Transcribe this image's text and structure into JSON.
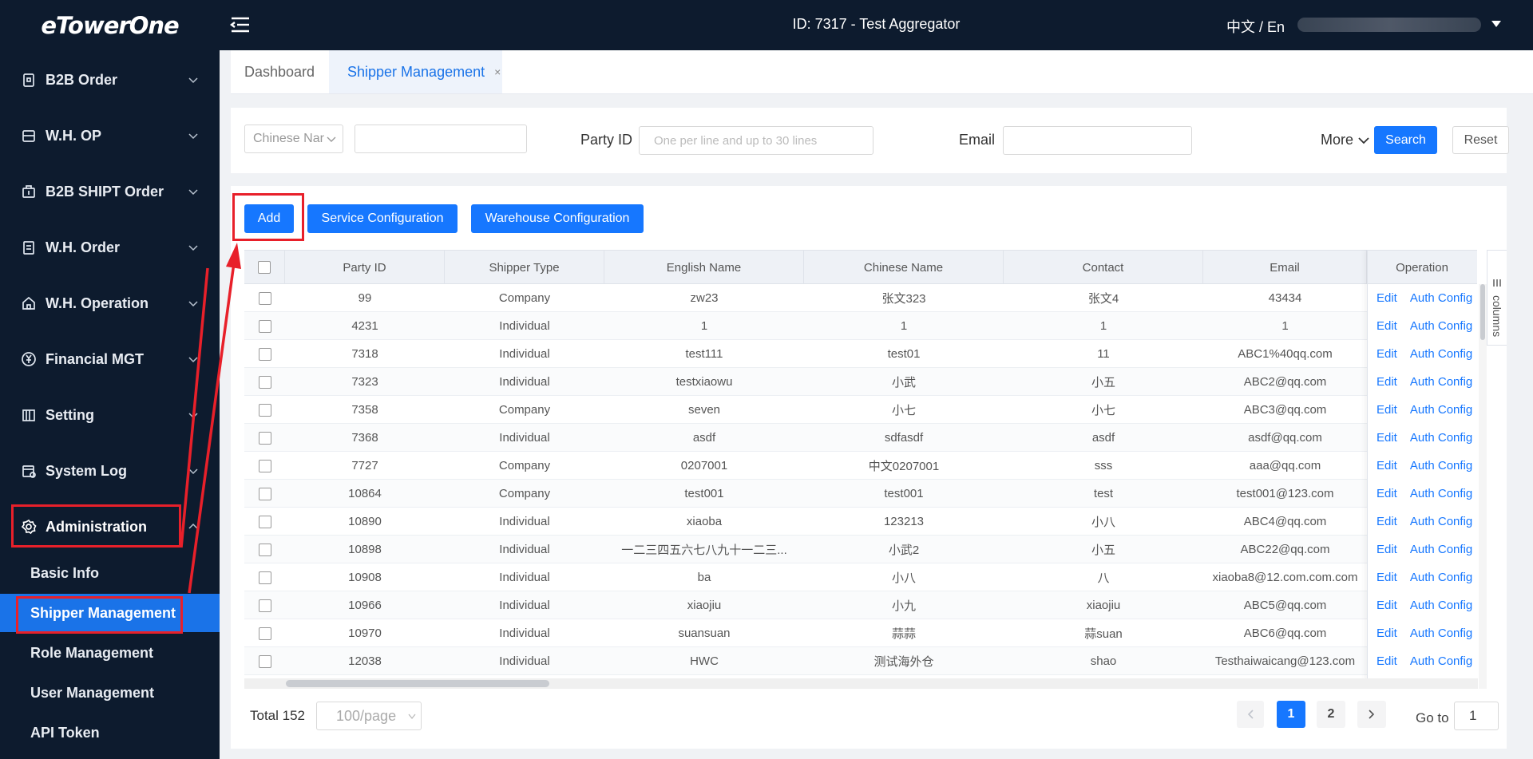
{
  "header": {
    "logo": "eTowerOne",
    "title": "ID: 7317 - Test Aggregator",
    "lang": "中文 / En"
  },
  "sidebar": {
    "items": [
      {
        "label": "B2B Order",
        "icon": "lock-doc-icon"
      },
      {
        "label": "W.H. OP",
        "icon": "list-icon"
      },
      {
        "label": "B2B SHIPT Order",
        "icon": "box-icon"
      },
      {
        "label": "W.H. Order",
        "icon": "document-icon"
      },
      {
        "label": "W.H. Operation",
        "icon": "house-icon"
      },
      {
        "label": "Financial MGT",
        "icon": "yen-icon"
      },
      {
        "label": "Setting",
        "icon": "building-icon"
      },
      {
        "label": "System Log",
        "icon": "calendar-icon"
      },
      {
        "label": "Administration",
        "icon": "gear-icon"
      }
    ],
    "subitems": [
      "Basic Info",
      "Shipper Management",
      "Role Management",
      "User Management",
      "API Token"
    ],
    "active": "Shipper Management"
  },
  "tabs": [
    {
      "label": "Dashboard"
    },
    {
      "label": "Shipper Management",
      "close": "×"
    }
  ],
  "filter": {
    "select_value": "Chinese Nar",
    "party_label": "Party ID",
    "party_placeholder": "One per line and up to 30 lines",
    "email_label": "Email",
    "more_label": "More",
    "search_label": "Search",
    "reset_label": "Reset"
  },
  "actions": {
    "add": "Add",
    "service": "Service Configuration",
    "warehouse": "Warehouse Configuration"
  },
  "table": {
    "columns": [
      "Party ID",
      "Shipper Type",
      "English Name",
      "Chinese Name",
      "Contact",
      "Email",
      "Operation"
    ],
    "edit_label": "Edit",
    "auth_label": "Auth Config",
    "columns_tab": "columns",
    "rows": [
      [
        "99",
        "Company",
        "zw23",
        "张文323",
        "张文4",
        "43434"
      ],
      [
        "4231",
        "Individual",
        "1",
        "1",
        "1",
        "1"
      ],
      [
        "7318",
        "Individual",
        "test111",
        "test01",
        "11",
        "ABC1%40qq.com"
      ],
      [
        "7323",
        "Individual",
        "testxiaowu",
        "小武",
        "小五",
        "ABC2@qq.com"
      ],
      [
        "7358",
        "Company",
        "seven",
        "小七",
        "小七",
        "ABC3@qq.com"
      ],
      [
        "7368",
        "Individual",
        "asdf",
        "sdfasdf",
        "asdf",
        "asdf@qq.com"
      ],
      [
        "7727",
        "Company",
        "0207001",
        "中文0207001",
        "sss",
        "aaa@qq.com"
      ],
      [
        "10864",
        "Company",
        "test001",
        "test001",
        "test",
        "test001@123.com"
      ],
      [
        "10890",
        "Individual",
        "xiaoba",
        "123213",
        "小八",
        "ABC4@qq.com"
      ],
      [
        "10898",
        "Individual",
        "一二三四五六七八九十一二三...",
        "小武2",
        "小五",
        "ABC22@qq.com"
      ],
      [
        "10908",
        "Individual",
        "ba",
        "小八",
        "八",
        "xiaoba8@12.com.com.com"
      ],
      [
        "10966",
        "Individual",
        "xiaojiu",
        "小九",
        "xiaojiu",
        "ABC5@qq.com"
      ],
      [
        "10970",
        "Individual",
        "suansuan",
        "蒜蒜",
        "蒜suan",
        "ABC6@qq.com"
      ],
      [
        "12038",
        "Individual",
        "HWC",
        "测试海外仓",
        "shao",
        "Testhaiwaicang@123.com"
      ]
    ]
  },
  "footer": {
    "total": "Total 152",
    "page_size": "100/page",
    "pages": [
      "1",
      "2"
    ],
    "current_page": "1",
    "goto_label": "Go to",
    "goto_value": "1"
  },
  "colors": {
    "sidebar_bg": "#0d1b2e",
    "accent": "#1677ff",
    "highlight": "#e8202a"
  }
}
